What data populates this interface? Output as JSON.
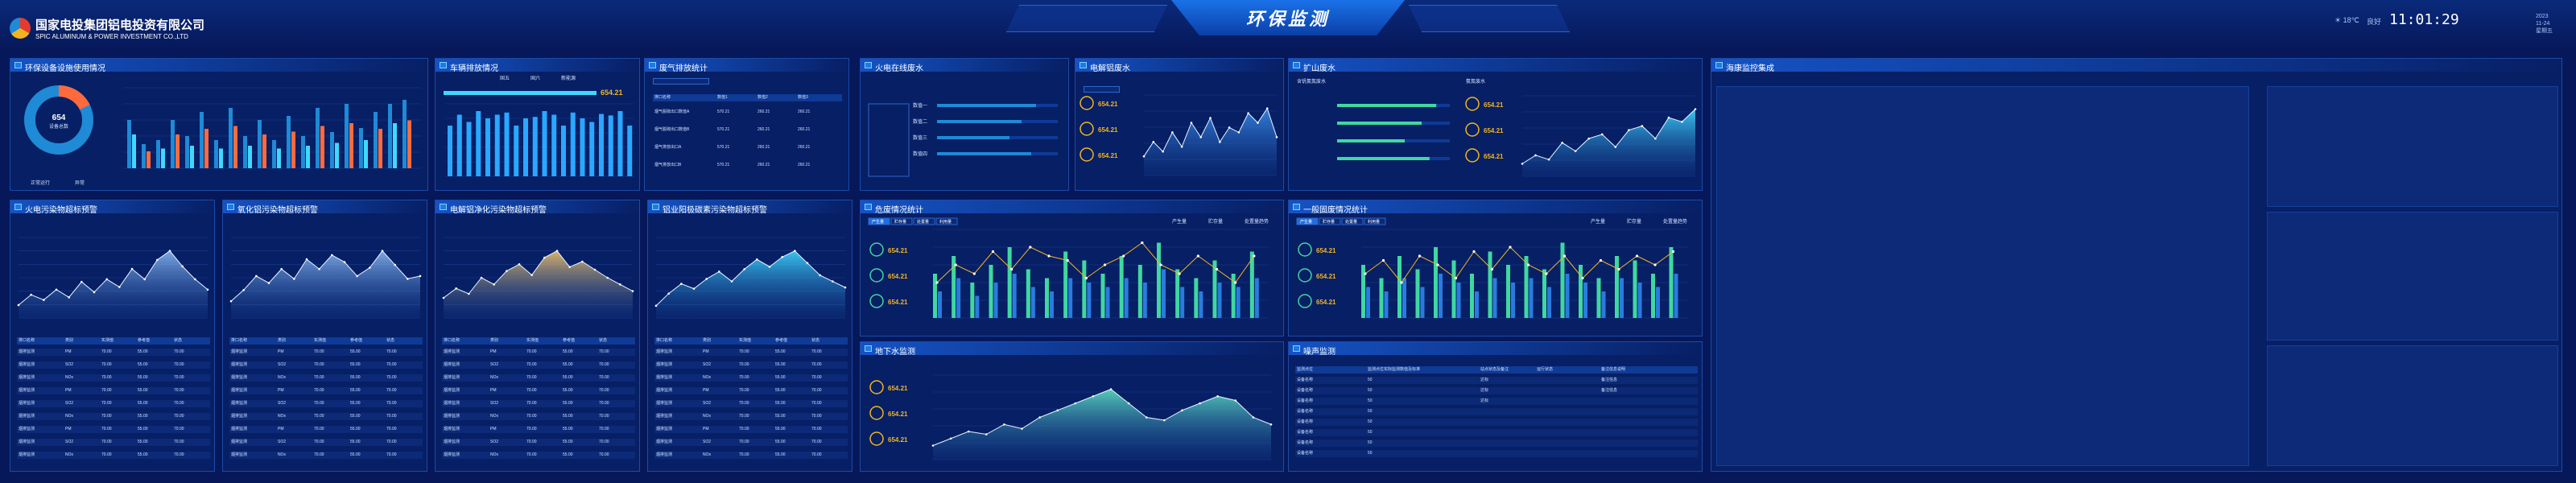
{
  "header": {
    "company_cn": "国家电投集团铝电投资有限公司",
    "company_en": "SPIC ALUMINUM & POWER INVESTMENT CO.,LTD",
    "title": "环保监测",
    "weather": "☀ 18℃",
    "aqi": "良好",
    "time": "11:01:29",
    "date_lines": [
      "2023",
      "11-24",
      "星期五"
    ]
  },
  "colors": {
    "accent": "#1f8ad6",
    "warn": "#ff6a3d",
    "gold": "#f2b51f",
    "cyan": "#3fd8ff"
  },
  "p1": {
    "title": "环保设备设施使用情况",
    "donut_value": "654",
    "donut_label": "设备总数",
    "legend": [
      "正常运行",
      "异常"
    ],
    "values": [
      60,
      30,
      35,
      60,
      40,
      70,
      35,
      75,
      40,
      60,
      35,
      65,
      40,
      75,
      45,
      80,
      50,
      70,
      80,
      85
    ]
  },
  "p2": {
    "title": "车辆排放情况",
    "legend": [
      "国五",
      "国六",
      "新能源"
    ],
    "kpi": "654.21",
    "values": [
      70,
      85,
      75,
      90,
      80,
      85,
      88,
      70,
      80,
      82,
      90,
      85,
      70,
      88,
      80,
      75,
      86,
      84,
      90,
      70
    ]
  },
  "p3": {
    "title": "废气排放统计",
    "head": [
      "排口名称",
      "数值1",
      "数值2",
      "数值3"
    ],
    "rows": [
      [
        "烟气脱硫出口数值A",
        "570.21",
        "260.21",
        "260.21"
      ],
      [
        "烟气脱硫出口数值B",
        "570.21",
        "260.21",
        "260.21"
      ],
      [
        "烟气排放出口A",
        "570.21",
        "260.21",
        "260.21"
      ],
      [
        "烟气排放出口B",
        "570.21",
        "260.21",
        "260.21"
      ]
    ]
  },
  "p4": {
    "title": "火电在线废水",
    "items": [
      "数值一",
      "数值二",
      "数值三",
      "数值四"
    ],
    "vals": [
      82,
      70,
      60,
      78
    ]
  },
  "p5": {
    "title": "电解铝废水",
    "kpis": [
      "654.21",
      "654.21",
      "654.21"
    ],
    "line": [
      20,
      35,
      25,
      45,
      30,
      55,
      40,
      60,
      35,
      50,
      45,
      65,
      55,
      70,
      40
    ]
  },
  "p6": {
    "title": "扩山废水",
    "sub": [
      "含钒氨氮废水",
      "氨氮废水"
    ],
    "bars": [
      88,
      75,
      60,
      82
    ],
    "kpis": [
      "654.21",
      "654.21",
      "654.21"
    ],
    "line": [
      15,
      25,
      20,
      40,
      30,
      45,
      50,
      35,
      55,
      60,
      45,
      70,
      65,
      80
    ]
  },
  "p7": {
    "title": "海康监控集成"
  },
  "q": [
    {
      "title": "火电污染物超标预警",
      "line": [
        10,
        18,
        14,
        22,
        16,
        28,
        20,
        30,
        24,
        38,
        30,
        45,
        52,
        40,
        30,
        22
      ]
    },
    {
      "title": "氧化铝污染物超标预警",
      "line": [
        12,
        20,
        30,
        25,
        35,
        28,
        42,
        35,
        45,
        40,
        30,
        36,
        48,
        38,
        28,
        30
      ]
    },
    {
      "title": "电解铝净化污染物超标预警",
      "line": [
        15,
        22,
        18,
        30,
        25,
        35,
        40,
        32,
        45,
        50,
        38,
        42,
        36,
        30,
        25,
        20
      ]
    },
    {
      "title": "铝业阳极碳素污染物超标预警",
      "line": [
        10,
        20,
        28,
        24,
        32,
        38,
        30,
        40,
        48,
        42,
        50,
        55,
        45,
        35,
        30,
        25
      ]
    }
  ],
  "q_table_head": [
    "排口名称",
    "类别",
    "实测值",
    "参考值",
    "状态"
  ],
  "q_rows": [
    [
      "烟排监测",
      "PM",
      "70.00",
      "55.00",
      "70.00"
    ],
    [
      "烟排监测",
      "SO2",
      "70.00",
      "55.00",
      "70.00"
    ],
    [
      "烟排监测",
      "NOx",
      "70.00",
      "55.00",
      "70.00"
    ],
    [
      "烟排监测",
      "PM",
      "70.00",
      "55.00",
      "70.00"
    ],
    [
      "烟排监测",
      "SO2",
      "70.00",
      "55.00",
      "70.00"
    ],
    [
      "烟排监测",
      "NOx",
      "70.00",
      "55.00",
      "70.00"
    ],
    [
      "烟排监测",
      "PM",
      "70.00",
      "55.00",
      "70.00"
    ],
    [
      "烟排监测",
      "SO2",
      "70.00",
      "55.00",
      "70.00"
    ],
    [
      "烟排监测",
      "NOx",
      "70.00",
      "55.00",
      "70.00"
    ]
  ],
  "r1": {
    "title": "危废情况统计",
    "tabs": [
      "产生量",
      "贮存量",
      "处置量",
      "利用量"
    ],
    "legend": [
      "产生量",
      "贮存量",
      "处置量趋势"
    ],
    "kpis": [
      "654.21",
      "654.21",
      "654.21"
    ],
    "barsA": [
      50,
      70,
      40,
      60,
      80,
      55,
      45,
      75,
      65,
      50,
      70,
      60,
      85,
      55,
      45,
      65,
      50,
      75
    ],
    "barsB": [
      30,
      45,
      25,
      40,
      50,
      35,
      30,
      45,
      40,
      35,
      45,
      40,
      55,
      35,
      30,
      40,
      35,
      45
    ],
    "line": [
      40,
      60,
      50,
      75,
      55,
      80,
      70,
      65,
      45,
      60,
      70,
      85,
      60,
      50,
      70,
      55,
      40,
      70
    ]
  },
  "r2": {
    "title": "一般固废情况统计",
    "tabs": [
      "产生量",
      "贮存量",
      "处置量",
      "利用量"
    ],
    "legend": [
      "产生量",
      "贮存量",
      "处置量趋势"
    ],
    "kpis": [
      "654.21",
      "654.21",
      "654.21"
    ],
    "barsA": [
      60,
      45,
      70,
      55,
      80,
      65,
      50,
      75,
      60,
      70,
      55,
      85,
      60,
      45,
      70,
      65,
      50,
      80
    ],
    "barsB": [
      35,
      30,
      45,
      35,
      50,
      40,
      30,
      45,
      40,
      45,
      35,
      50,
      40,
      30,
      45,
      40,
      35,
      50
    ],
    "line": [
      50,
      65,
      40,
      70,
      60,
      45,
      75,
      55,
      80,
      60,
      50,
      70,
      45,
      65,
      55,
      70,
      60,
      75
    ]
  },
  "r3": {
    "title": "地下水监测",
    "kpis": [
      "654.21",
      "654.21",
      "654.21"
    ],
    "line": [
      10,
      15,
      20,
      18,
      25,
      22,
      30,
      35,
      40,
      45,
      50,
      40,
      30,
      28,
      35,
      40,
      45,
      42,
      30,
      25
    ]
  },
  "r4": {
    "title": "噪声监测",
    "head": [
      "监测点位",
      "监测点位实际监测数值及标准",
      "站点状态及备注",
      "运行状态",
      "备注信息说明"
    ],
    "rows": [
      [
        "设备名称",
        "50",
        "达标",
        "",
        "备注信息"
      ],
      [
        "设备名称",
        "50",
        "达标",
        "",
        "备注信息"
      ],
      [
        "设备名称",
        "50",
        "达标",
        "",
        ""
      ],
      [
        "设备名称",
        "50",
        "",
        "",
        ""
      ],
      [
        "设备名称",
        "50",
        "",
        "",
        ""
      ],
      [
        "设备名称",
        "50",
        "",
        "",
        ""
      ],
      [
        "设备名称",
        "50",
        "",
        "",
        ""
      ],
      [
        "设备名称",
        "50",
        "",
        "",
        ""
      ]
    ]
  }
}
